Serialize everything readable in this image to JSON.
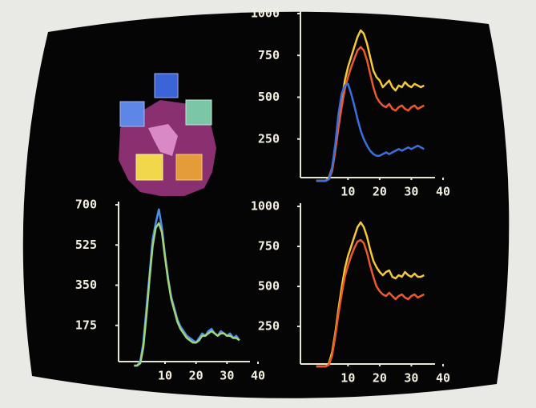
{
  "chart_data": [
    {
      "type": "line",
      "x": [
        0,
        1,
        2,
        3,
        4,
        5,
        6,
        7,
        8,
        9,
        10,
        11,
        12,
        13,
        14,
        15,
        16,
        17,
        18,
        19,
        20,
        21,
        22,
        23,
        24,
        25,
        26,
        27,
        28,
        29,
        30,
        31,
        32,
        33,
        34
      ],
      "xlim": [
        -5,
        40
      ],
      "xticks": [
        10,
        20,
        30,
        40
      ],
      "ylim": [
        0,
        1000
      ],
      "yticks": [
        250,
        500,
        750,
        1000
      ],
      "series": [
        {
          "color": "#f4c93a",
          "values": [
            0,
            0,
            0,
            0,
            20,
            80,
            200,
            350,
            480,
            600,
            680,
            740,
            800,
            860,
            900,
            880,
            820,
            740,
            660,
            620,
            600,
            560,
            580,
            600,
            560,
            540,
            570,
            560,
            590,
            570,
            560,
            580,
            570,
            560,
            570
          ]
        },
        {
          "color": "#ec5a2c",
          "values": [
            0,
            0,
            0,
            0,
            10,
            60,
            180,
            320,
            440,
            550,
            620,
            680,
            730,
            780,
            800,
            780,
            720,
            640,
            560,
            500,
            470,
            450,
            440,
            460,
            430,
            420,
            440,
            450,
            430,
            420,
            440,
            450,
            430,
            440,
            450
          ]
        },
        {
          "color": "#3b6fe0",
          "values": [
            0,
            0,
            0,
            0,
            10,
            80,
            220,
            400,
            520,
            570,
            580,
            520,
            450,
            370,
            300,
            250,
            210,
            180,
            160,
            150,
            150,
            160,
            170,
            160,
            170,
            180,
            190,
            180,
            190,
            200,
            190,
            200,
            210,
            200,
            190
          ]
        }
      ]
    },
    {
      "type": "line",
      "x": [
        0,
        1,
        2,
        3,
        4,
        5,
        6,
        7,
        8,
        9,
        10,
        11,
        12,
        13,
        14,
        15,
        16,
        17,
        18,
        19,
        20,
        21,
        22,
        23,
        24,
        25,
        26,
        27,
        28,
        29,
        30,
        31,
        32,
        33,
        34
      ],
      "xlim": [
        -5,
        40
      ],
      "xticks": [
        10,
        20,
        30,
        40
      ],
      "ylim": [
        0,
        700
      ],
      "yticks": [
        175,
        350,
        525,
        700
      ],
      "series": [
        {
          "color": "#4b8fe8",
          "values": [
            0,
            0,
            20,
            100,
            250,
            400,
            550,
            620,
            680,
            600,
            480,
            380,
            300,
            250,
            200,
            170,
            150,
            130,
            120,
            110,
            100,
            120,
            140,
            130,
            150,
            160,
            140,
            130,
            150,
            140,
            130,
            140,
            120,
            130,
            110
          ]
        },
        {
          "color": "#9fd67a",
          "values": [
            0,
            0,
            10,
            80,
            220,
            380,
            520,
            600,
            620,
            580,
            470,
            370,
            290,
            240,
            190,
            160,
            140,
            120,
            110,
            100,
            100,
            110,
            130,
            130,
            140,
            150,
            140,
            130,
            140,
            140,
            130,
            130,
            120,
            120,
            110
          ]
        }
      ]
    },
    {
      "type": "line",
      "x": [
        0,
        1,
        2,
        3,
        4,
        5,
        6,
        7,
        8,
        9,
        10,
        11,
        12,
        13,
        14,
        15,
        16,
        17,
        18,
        19,
        20,
        21,
        22,
        23,
        24,
        25,
        26,
        27,
        28,
        29,
        30,
        31,
        32,
        33,
        34
      ],
      "xlim": [
        -5,
        40
      ],
      "xticks": [
        10,
        20,
        30,
        40
      ],
      "ylim": [
        0,
        1000
      ],
      "yticks": [
        250,
        500,
        750,
        1000
      ],
      "series": [
        {
          "color": "#f4c93a",
          "values": [
            0,
            0,
            0,
            0,
            20,
            90,
            210,
            360,
            490,
            610,
            690,
            750,
            810,
            870,
            900,
            870,
            810,
            730,
            660,
            620,
            590,
            570,
            590,
            600,
            560,
            550,
            570,
            560,
            590,
            570,
            560,
            580,
            560,
            560,
            570
          ]
        },
        {
          "color": "#ec5a2c",
          "values": [
            0,
            0,
            0,
            0,
            10,
            70,
            190,
            330,
            450,
            560,
            630,
            690,
            740,
            780,
            790,
            770,
            710,
            630,
            560,
            500,
            470,
            450,
            440,
            460,
            440,
            420,
            440,
            450,
            430,
            420,
            440,
            450,
            430,
            440,
            450
          ]
        }
      ]
    }
  ]
}
